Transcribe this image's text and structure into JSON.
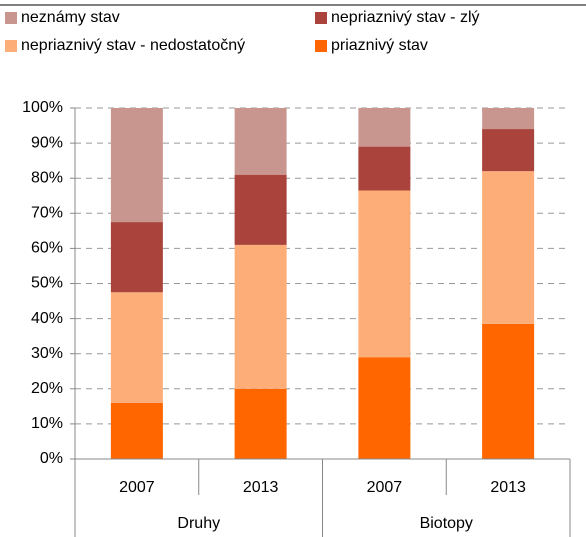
{
  "chart_data": {
    "type": "stacked_bar",
    "categories": [
      "2007",
      "2013",
      "2007",
      "2013"
    ],
    "groups": [
      "Druhy",
      "Biotopy"
    ],
    "series": [
      {
        "name": "priaznivý stav",
        "color": "#ff6600",
        "values": [
          16,
          20,
          29,
          38.5
        ]
      },
      {
        "name": "nepriaznivý stav - nedostatočný",
        "color": "#fdae78",
        "values": [
          31.5,
          41,
          47.5,
          43.5
        ]
      },
      {
        "name": "nepriaznivý stav - zlý",
        "color": "#a9433c",
        "values": [
          20,
          20,
          12.5,
          12
        ]
      },
      {
        "name": "neznámy stav",
        "color": "#c9968f",
        "values": [
          32.5,
          19,
          11,
          6
        ]
      }
    ],
    "ylim": [
      0,
      100
    ],
    "yticks": [
      {
        "value": 0,
        "label": "0%"
      },
      {
        "value": 10,
        "label": "10%"
      },
      {
        "value": 20,
        "label": "20%"
      },
      {
        "value": 30,
        "label": "30%"
      },
      {
        "value": 40,
        "label": "40%"
      },
      {
        "value": 50,
        "label": "50%"
      },
      {
        "value": 60,
        "label": "60%"
      },
      {
        "value": 70,
        "label": "70%"
      },
      {
        "value": 80,
        "label": "80%"
      },
      {
        "value": 90,
        "label": "90%"
      },
      {
        "value": 100,
        "label": "100%"
      }
    ],
    "grid": true
  }
}
